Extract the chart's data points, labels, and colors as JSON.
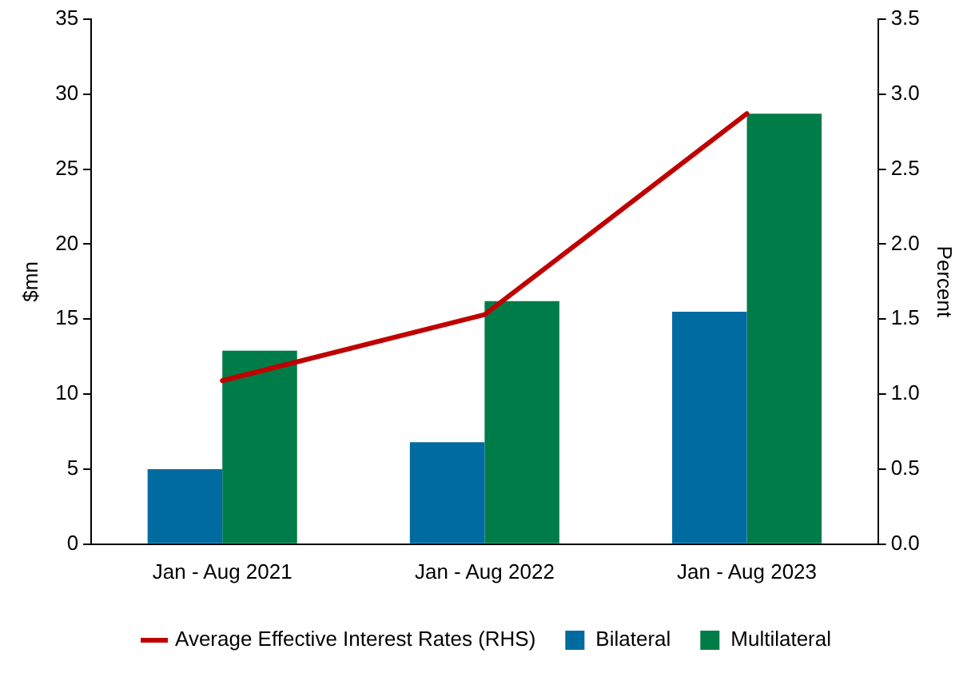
{
  "chart_data": {
    "type": "bar",
    "ylabel": "$mn",
    "y2label": "Percent",
    "categories": [
      "Jan - Aug 2021",
      "Jan - Aug 2022",
      "Jan - Aug 2023"
    ],
    "series": [
      {
        "name": "Bilateral",
        "color": "#006ba1",
        "values": [
          5.0,
          6.8,
          15.5
        ]
      },
      {
        "name": "Multilateral",
        "color": "#007c48",
        "values": [
          12.9,
          16.2,
          28.7
        ]
      },
      {
        "name": "Average Effective Interest Rates (RHS)",
        "type": "line",
        "axis": "y2",
        "color": "#c00000",
        "values": [
          1.09,
          1.53,
          2.87
        ]
      }
    ],
    "ylim": [
      0,
      35
    ],
    "yticks": [
      0,
      5,
      10,
      15,
      20,
      25,
      30,
      35
    ],
    "y2lim": [
      0,
      3.5
    ],
    "y2ticks": [
      {
        "value": 0,
        "label": "0.0"
      },
      {
        "value": 0.5,
        "label": "0.5"
      },
      {
        "value": 1,
        "label": "1.0"
      },
      {
        "value": 1.5,
        "label": "1.5"
      },
      {
        "value": 2,
        "label": "2.0"
      },
      {
        "value": 2.5,
        "label": "2.5"
      },
      {
        "value": 3,
        "label": "3.0"
      },
      {
        "value": 3.5,
        "label": "3.5"
      }
    ],
    "grid": false,
    "legend": "bottom",
    "marker": "none",
    "line_style": "solid"
  }
}
